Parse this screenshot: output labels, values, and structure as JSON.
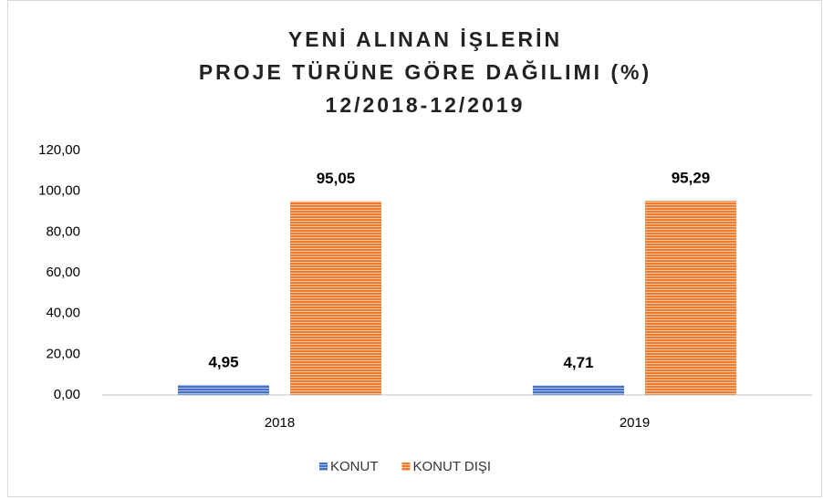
{
  "chart_data": {
    "type": "bar",
    "title": [
      "YENİ ALINAN İŞLERİN",
      "PROJE TÜRÜNE GÖRE DAĞILIMI (%)",
      "12/2018-12/2019"
    ],
    "categories": [
      "2018",
      "2019"
    ],
    "series": [
      {
        "name": "KONUT",
        "color": "#4472c4",
        "values": [
          4.95,
          4.71
        ],
        "value_labels": [
          "4,95",
          "4,71"
        ]
      },
      {
        "name": "KONUT DIŞI",
        "color": "#ed7d31",
        "values": [
          95.05,
          95.29
        ],
        "value_labels": [
          "95,05",
          "95,29"
        ]
      }
    ],
    "ylim": [
      0,
      120
    ],
    "yticks": [
      {
        "value": 0,
        "label": "0,00"
      },
      {
        "value": 20,
        "label": "20,00"
      },
      {
        "value": 40,
        "label": "40,00"
      },
      {
        "value": 60,
        "label": "60,00"
      },
      {
        "value": 80,
        "label": "80,00"
      },
      {
        "value": 100,
        "label": "100,00"
      },
      {
        "value": 120,
        "label": "120,00"
      }
    ],
    "grid": false,
    "legend": "bottom"
  }
}
